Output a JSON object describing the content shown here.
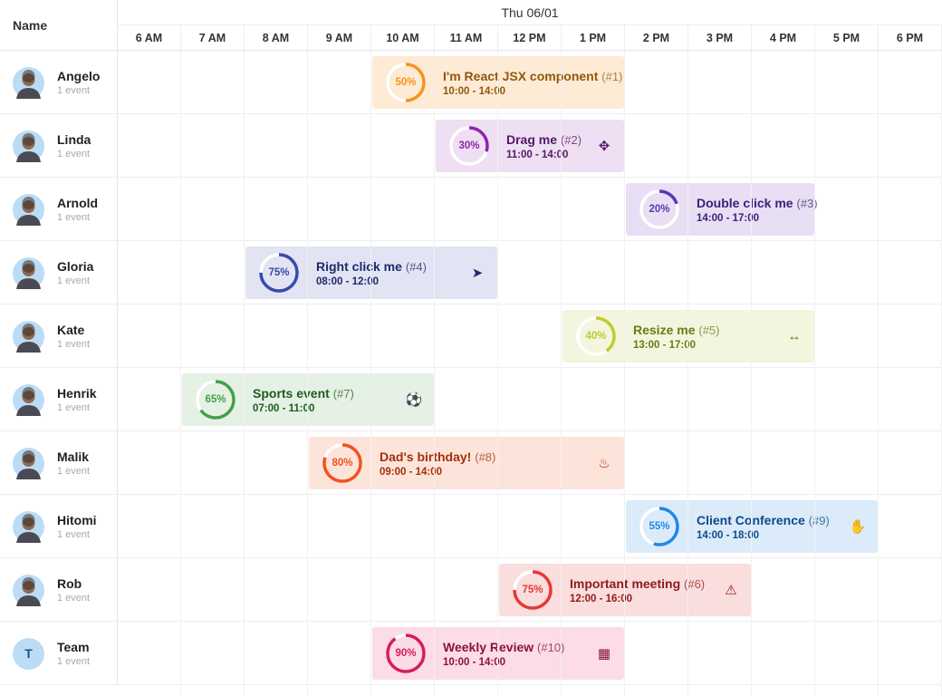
{
  "header": {
    "name_label": "Name",
    "date": "Thu 06/01",
    "hours": [
      "6 AM",
      "7 AM",
      "8 AM",
      "9 AM",
      "10 AM",
      "11 AM",
      "12 PM",
      "1 PM",
      "2 PM",
      "3 PM",
      "4 PM",
      "5 PM",
      "6 PM"
    ]
  },
  "resources": [
    {
      "name": "Angelo",
      "count": "1 event",
      "event": {
        "title": "I'm React JSX component",
        "num": "(#1)",
        "time": "10:00 - 14:00",
        "start": 10,
        "end": 14,
        "progress": "50%",
        "pct": 50,
        "bg": "#fdebd5",
        "ring": "#f7941d",
        "fg": "#93560f",
        "icon": "",
        "icon_name": ""
      }
    },
    {
      "name": "Linda",
      "count": "1 event",
      "event": {
        "title": "Drag me",
        "num": "(#2)",
        "time": "11:00 - 14:00",
        "start": 11,
        "end": 14,
        "progress": "30%",
        "pct": 30,
        "bg": "#eedff3",
        "ring": "#8e24aa",
        "fg": "#561868",
        "icon": "✥",
        "icon_name": "move-icon"
      }
    },
    {
      "name": "Arnold",
      "count": "1 event",
      "event": {
        "title": "Double click me",
        "num": "(#3)",
        "time": "14:00 - 17:00",
        "start": 14,
        "end": 17,
        "progress": "20%",
        "pct": 20,
        "bg": "#e8dff4",
        "ring": "#5e35b1",
        "fg": "#3a1e78",
        "icon": "",
        "icon_name": ""
      }
    },
    {
      "name": "Gloria",
      "count": "1 event",
      "event": {
        "title": "Right click me",
        "num": "(#4)",
        "time": "08:00 - 12:00",
        "start": 8,
        "end": 12,
        "progress": "75%",
        "pct": 75,
        "bg": "#e2e4f3",
        "ring": "#3949ab",
        "fg": "#1e2a6b",
        "icon": "➤",
        "icon_name": "cursor-icon"
      }
    },
    {
      "name": "Kate",
      "count": "1 event",
      "event": {
        "title": "Resize me",
        "num": "(#5)",
        "time": "13:00 - 17:00",
        "start": 13,
        "end": 17,
        "progress": "40%",
        "pct": 40,
        "bg": "#f3f5de",
        "ring": "#c0ca33",
        "fg": "#6b7a12",
        "icon": "↔",
        "icon_name": "resize-horizontal-icon"
      }
    },
    {
      "name": "Henrik",
      "count": "1 event",
      "event": {
        "title": "Sports event",
        "num": "(#7)",
        "time": "07:00 - 11:00",
        "start": 7,
        "end": 11,
        "progress": "65%",
        "pct": 65,
        "bg": "#e4f1e4",
        "ring": "#43a047",
        "fg": "#1e5b20",
        "icon": "⚽",
        "icon_name": "basketball-icon"
      }
    },
    {
      "name": "Malik",
      "count": "1 event",
      "event": {
        "title": "Dad's birthday!",
        "num": "(#8)",
        "time": "09:00 - 14:00",
        "start": 9,
        "end": 14,
        "progress": "80%",
        "pct": 80,
        "bg": "#fde4db",
        "ring": "#f4511e",
        "fg": "#a2300c",
        "icon": "♨",
        "icon_name": "birthday-cake-icon"
      }
    },
    {
      "name": "Hitomi",
      "count": "1 event",
      "event": {
        "title": "Client Conference",
        "num": "(#9)",
        "time": "14:00 - 18:00",
        "start": 14,
        "end": 18,
        "progress": "55%",
        "pct": 55,
        "bg": "#dcebfa",
        "ring": "#1e88e5",
        "fg": "#0d4a8a",
        "icon": "✋",
        "icon_name": "hand-icon"
      }
    },
    {
      "name": "Rob",
      "count": "1 event",
      "event": {
        "title": "Important meeting",
        "num": "(#6)",
        "time": "12:00 - 16:00",
        "start": 12,
        "end": 16,
        "progress": "75%",
        "pct": 75,
        "bg": "#fadddd",
        "ring": "#e53935",
        "fg": "#8e1b1b",
        "icon": "⚠",
        "icon_name": "warning-icon"
      }
    },
    {
      "name": "Team",
      "count": "1 event",
      "initial": "T",
      "event": {
        "title": "Weekly Review",
        "num": "(#10)",
        "time": "10:00 - 14:00",
        "start": 10,
        "end": 14,
        "progress": "90%",
        "pct": 90,
        "bg": "#fbdce7",
        "ring": "#d81b60",
        "fg": "#8a1240",
        "icon": "▦",
        "icon_name": "calendar-icon"
      }
    }
  ]
}
